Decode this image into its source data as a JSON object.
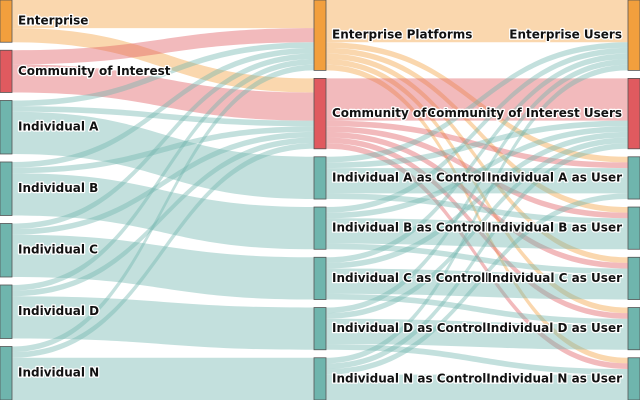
{
  "chart_data": {
    "type": "sankey",
    "nodes": [
      {
        "name": "Enterprise",
        "color": "#f29f3d"
      },
      {
        "name": "Community of Interest",
        "color": "#e05a5f"
      },
      {
        "name": "Individual A",
        "color": "#6fb5ad"
      },
      {
        "name": "Individual B",
        "color": "#6fb5ad"
      },
      {
        "name": "Individual C",
        "color": "#6fb5ad"
      },
      {
        "name": "Individual D",
        "color": "#6fb5ad"
      },
      {
        "name": "Individual N",
        "color": "#6fb5ad"
      },
      {
        "name": "Enterprise Platforms",
        "color": "#f29f3d"
      },
      {
        "name": "Community of Interest",
        "color": "#e05a5f"
      },
      {
        "name": "Individual A as Controller",
        "color": "#6fb5ad"
      },
      {
        "name": "Individual B as Controller",
        "color": "#6fb5ad"
      },
      {
        "name": "Individual C as Controller",
        "color": "#6fb5ad"
      },
      {
        "name": "Individual D as Controller",
        "color": "#6fb5ad"
      },
      {
        "name": "Individual N as Controller",
        "color": "#6fb5ad"
      },
      {
        "name": "Enterprise Users",
        "color": "#f29f3d"
      },
      {
        "name": "Community of Interest Users",
        "color": "#e05a5f"
      },
      {
        "name": "Individual A as User",
        "color": "#6fb5ad"
      },
      {
        "name": "Individual B as User",
        "color": "#6fb5ad"
      },
      {
        "name": "Individual C as User",
        "color": "#6fb5ad"
      },
      {
        "name": "Individual D as User",
        "color": "#6fb5ad"
      },
      {
        "name": "Individual N as User",
        "color": "#6fb5ad"
      }
    ],
    "links": [
      {
        "source": 0,
        "target": 7,
        "value": 10
      },
      {
        "source": 0,
        "target": 8,
        "value": 5
      },
      {
        "source": 1,
        "target": 7,
        "value": 5
      },
      {
        "source": 1,
        "target": 8,
        "value": 10
      },
      {
        "source": 2,
        "target": 9,
        "value": 15
      },
      {
        "source": 2,
        "target": 7,
        "value": 2
      },
      {
        "source": 2,
        "target": 8,
        "value": 2
      },
      {
        "source": 3,
        "target": 10,
        "value": 15
      },
      {
        "source": 3,
        "target": 7,
        "value": 2
      },
      {
        "source": 3,
        "target": 8,
        "value": 2
      },
      {
        "source": 4,
        "target": 11,
        "value": 15
      },
      {
        "source": 4,
        "target": 7,
        "value": 2
      },
      {
        "source": 4,
        "target": 8,
        "value": 2
      },
      {
        "source": 5,
        "target": 12,
        "value": 15
      },
      {
        "source": 5,
        "target": 7,
        "value": 2
      },
      {
        "source": 5,
        "target": 8,
        "value": 2
      },
      {
        "source": 6,
        "target": 13,
        "value": 15
      },
      {
        "source": 6,
        "target": 7,
        "value": 2
      },
      {
        "source": 6,
        "target": 8,
        "value": 2
      },
      {
        "source": 7,
        "target": 14,
        "value": 15
      },
      {
        "source": 7,
        "target": 16,
        "value": 2
      },
      {
        "source": 7,
        "target": 17,
        "value": 2
      },
      {
        "source": 7,
        "target": 18,
        "value": 2
      },
      {
        "source": 7,
        "target": 19,
        "value": 2
      },
      {
        "source": 7,
        "target": 20,
        "value": 2
      },
      {
        "source": 8,
        "target": 15,
        "value": 15
      },
      {
        "source": 8,
        "target": 16,
        "value": 2
      },
      {
        "source": 8,
        "target": 17,
        "value": 2
      },
      {
        "source": 8,
        "target": 18,
        "value": 2
      },
      {
        "source": 8,
        "target": 19,
        "value": 2
      },
      {
        "source": 8,
        "target": 20,
        "value": 2
      },
      {
        "source": 9,
        "target": 16,
        "value": 9
      },
      {
        "source": 9,
        "target": 14,
        "value": 2
      },
      {
        "source": 9,
        "target": 15,
        "value": 2
      },
      {
        "source": 9,
        "target": 17,
        "value": 2
      },
      {
        "source": 10,
        "target": 17,
        "value": 9
      },
      {
        "source": 10,
        "target": 14,
        "value": 2
      },
      {
        "source": 10,
        "target": 15,
        "value": 2
      },
      {
        "source": 10,
        "target": 18,
        "value": 2
      },
      {
        "source": 11,
        "target": 18,
        "value": 9
      },
      {
        "source": 11,
        "target": 14,
        "value": 2
      },
      {
        "source": 11,
        "target": 15,
        "value": 2
      },
      {
        "source": 11,
        "target": 19,
        "value": 2
      },
      {
        "source": 12,
        "target": 19,
        "value": 9
      },
      {
        "source": 12,
        "target": 14,
        "value": 2
      },
      {
        "source": 12,
        "target": 15,
        "value": 2
      },
      {
        "source": 12,
        "target": 20,
        "value": 2
      },
      {
        "source": 13,
        "target": 20,
        "value": 9
      },
      {
        "source": 13,
        "target": 14,
        "value": 2
      },
      {
        "source": 13,
        "target": 15,
        "value": 2
      },
      {
        "source": 13,
        "target": 16,
        "value": 2
      }
    ]
  }
}
